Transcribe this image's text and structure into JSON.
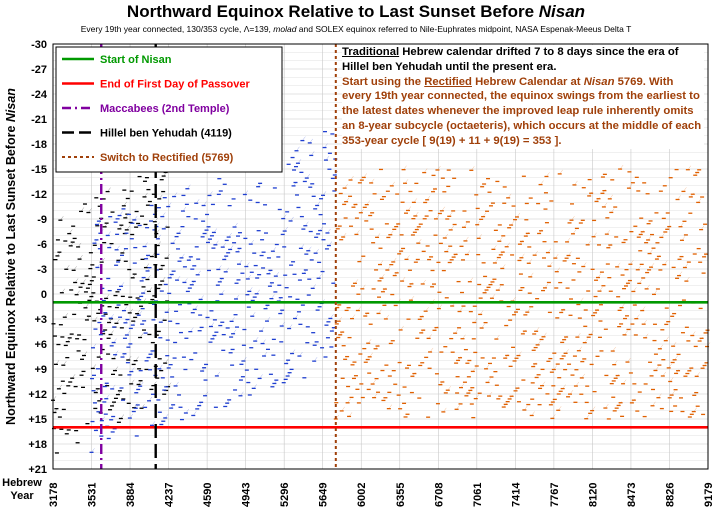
{
  "chart_data": {
    "type": "scatter",
    "title": "Northward Equinox Relative to Last Sunset Before Nisan",
    "subtitle": "Every 19th year connected, 130/353 cycle, Λ=139, molad and SOLEX equinox referred to Nile-Euphrates midpoint, NASA Espenak-Meeus Delta T",
    "ylabel": "Northward Equinox Relative to Last Sunset Before Nisan",
    "xlabel": "Hebrew Year",
    "y_ticks": [
      "-30",
      "-27",
      "-24",
      "-21",
      "-18",
      "-15",
      "-12",
      "-9",
      "-6",
      "-3",
      "0",
      "+3",
      "+6",
      "+9",
      "+12",
      "+15",
      "+18",
      "+21"
    ],
    "x_ticks": [
      "3178",
      "3531",
      "3884",
      "4237",
      "4590",
      "4943",
      "5296",
      "5649",
      "6002",
      "6355",
      "6708",
      "7061",
      "7414",
      "7767",
      "8120",
      "8473",
      "8826",
      "9179"
    ],
    "xlim": [
      3178,
      9179
    ],
    "ylim": [
      -30,
      21
    ],
    "y_inverted": true,
    "grid": true,
    "series": [
      {
        "name": "Start of Nisan",
        "kind": "hline",
        "y": 1,
        "color": "#009900"
      },
      {
        "name": "End of First Day of Passover",
        "kind": "hline",
        "y": 16,
        "color": "#ff0000"
      },
      {
        "name": "Maccabees (2nd Temple)",
        "kind": "vline",
        "x": 3620,
        "color": "#8000a0"
      },
      {
        "name": "Hillel ben Yehudah (4119)",
        "kind": "vline",
        "x": 4119,
        "color": "#000000"
      },
      {
        "name": "Switch to Rectified (5769)",
        "kind": "vline",
        "x": 5769,
        "color": "#a0400a"
      },
      {
        "name": "Traditional calendar (black)",
        "kind": "scatter",
        "x_range": [
          3178,
          4237
        ],
        "y_trend_start": [
          -9,
          20
        ],
        "y_trend_end": [
          -16,
          12
        ],
        "color": "#000000"
      },
      {
        "name": "Traditional calendar (blue)",
        "kind": "scatter",
        "x_range": [
          3531,
          5769
        ],
        "y_trend_start": [
          -9,
          19
        ],
        "y_trend_end": [
          -20,
          9
        ],
        "color": "#1f3fd0"
      },
      {
        "name": "Rectified calendar (orange)",
        "kind": "scatter",
        "x_range": [
          5769,
          9179
        ],
        "y_range": [
          -15,
          15
        ],
        "color": "#e06000"
      }
    ],
    "legend": {
      "placement": "top-left",
      "entries": [
        {
          "label": "Start of Nisan",
          "color": "#009900",
          "style": "solid"
        },
        {
          "label": "End of First Day of Passover",
          "color": "#ff0000",
          "style": "solid"
        },
        {
          "label": "Maccabees (2nd Temple)",
          "color": "#8000a0",
          "style": "dashdot"
        },
        {
          "label": "Hillel ben Yehudah (4119)",
          "color": "#000000",
          "style": "longdash"
        },
        {
          "label": "Switch to Rectified (5769)",
          "color": "#a0400a",
          "style": "dotted"
        }
      ]
    }
  },
  "notes": {
    "line1_pre": "Traditional",
    "line1_post": " Hebrew calendar drifted 7 to 8 days since the era of Hillel ben Yehudah until the present era.",
    "line2_pre": "Start using the ",
    "line2_under": "Rectified",
    "line2_mid": " Hebrew Calendar at ",
    "line2_ital": "Nisan",
    "line2_post": " 5769. With every 19th year connected, the equinox swings from the earliest to the latest dates whenever the improved leap rule inherently omits an 8-year subcycle (octaeteris), which occurs at the middle of each 353-year cycle [ 9(19) + 11 + 9(19) = 353 ]."
  },
  "x_axis_name_line1": "Hebrew",
  "x_axis_name_line2": "Year"
}
